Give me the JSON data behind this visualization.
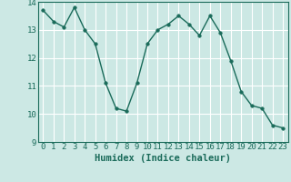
{
  "x": [
    0,
    1,
    2,
    3,
    4,
    5,
    6,
    7,
    8,
    9,
    10,
    11,
    12,
    13,
    14,
    15,
    16,
    17,
    18,
    19,
    20,
    21,
    22,
    23
  ],
  "y": [
    13.7,
    13.3,
    13.1,
    13.8,
    13.0,
    12.5,
    11.1,
    10.2,
    10.1,
    11.1,
    12.5,
    13.0,
    13.2,
    13.5,
    13.2,
    12.8,
    13.5,
    12.9,
    11.9,
    10.8,
    10.3,
    10.2,
    9.6,
    9.5
  ],
  "line_color": "#1a6b5a",
  "marker_color": "#1a6b5a",
  "bg_color": "#cce8e4",
  "grid_color": "#ffffff",
  "xlabel": "Humidex (Indice chaleur)",
  "xlim": [
    -0.5,
    23.5
  ],
  "ylim": [
    9,
    14
  ],
  "yticks": [
    9,
    10,
    11,
    12,
    13,
    14
  ],
  "xticks": [
    0,
    1,
    2,
    3,
    4,
    5,
    6,
    7,
    8,
    9,
    10,
    11,
    12,
    13,
    14,
    15,
    16,
    17,
    18,
    19,
    20,
    21,
    22,
    23
  ],
  "tick_fontsize": 6.5,
  "label_fontsize": 7.5
}
